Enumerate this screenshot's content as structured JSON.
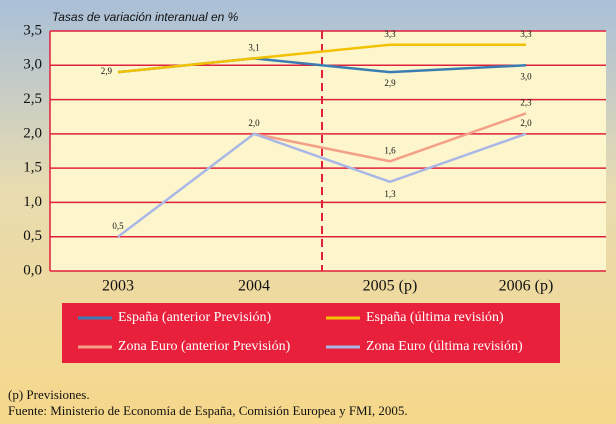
{
  "chart_data": {
    "type": "line",
    "title": "Tasas de variación interanual en %",
    "categories": [
      "2003",
      "2004",
      "2005 (p)",
      "2006 (p)"
    ],
    "series": [
      {
        "name": "España (anterior Previsión)",
        "color": "#3b7db3",
        "values": [
          2.9,
          3.1,
          2.9,
          3.0
        ],
        "value_labels": [
          null,
          null,
          "2,9",
          "3,0"
        ]
      },
      {
        "name": "España (última revisión)",
        "color": "#f2c200",
        "values": [
          2.9,
          3.1,
          3.3,
          3.3
        ],
        "value_labels": [
          "2,9",
          "3,1",
          "3,3",
          "3,3"
        ]
      },
      {
        "name": "Zona Euro (anterior Previsión)",
        "color": "#f4a088",
        "values": [
          null,
          2.0,
          1.6,
          2.3
        ],
        "value_labels": [
          null,
          null,
          "1,6",
          "2,3"
        ]
      },
      {
        "name": "Zona Euro (última revisión)",
        "color": "#a9b7e6",
        "values": [
          0.5,
          2.0,
          1.3,
          2.0
        ],
        "value_labels": [
          "0,5",
          "2,0",
          "1,3",
          "2,0"
        ]
      }
    ],
    "ylim": [
      0,
      3.5
    ],
    "yticks": [
      {
        "value": 0,
        "label": "0,0"
      },
      {
        "value": 0.5,
        "label": "0,5"
      },
      {
        "value": 1,
        "label": "1,0"
      },
      {
        "value": 1.5,
        "label": "1,5"
      },
      {
        "value": 2,
        "label": "2,0"
      },
      {
        "value": 2.5,
        "label": "2,5"
      },
      {
        "value": 3,
        "label": "3,0"
      },
      {
        "value": 3.5,
        "label": "3,5"
      }
    ],
    "grid": true,
    "legend": "bottom",
    "notes": [
      "(p) Previsiones.",
      "Fuente: Ministerio de Economía de España, Comisión Europea y FMI, 2005."
    ]
  }
}
